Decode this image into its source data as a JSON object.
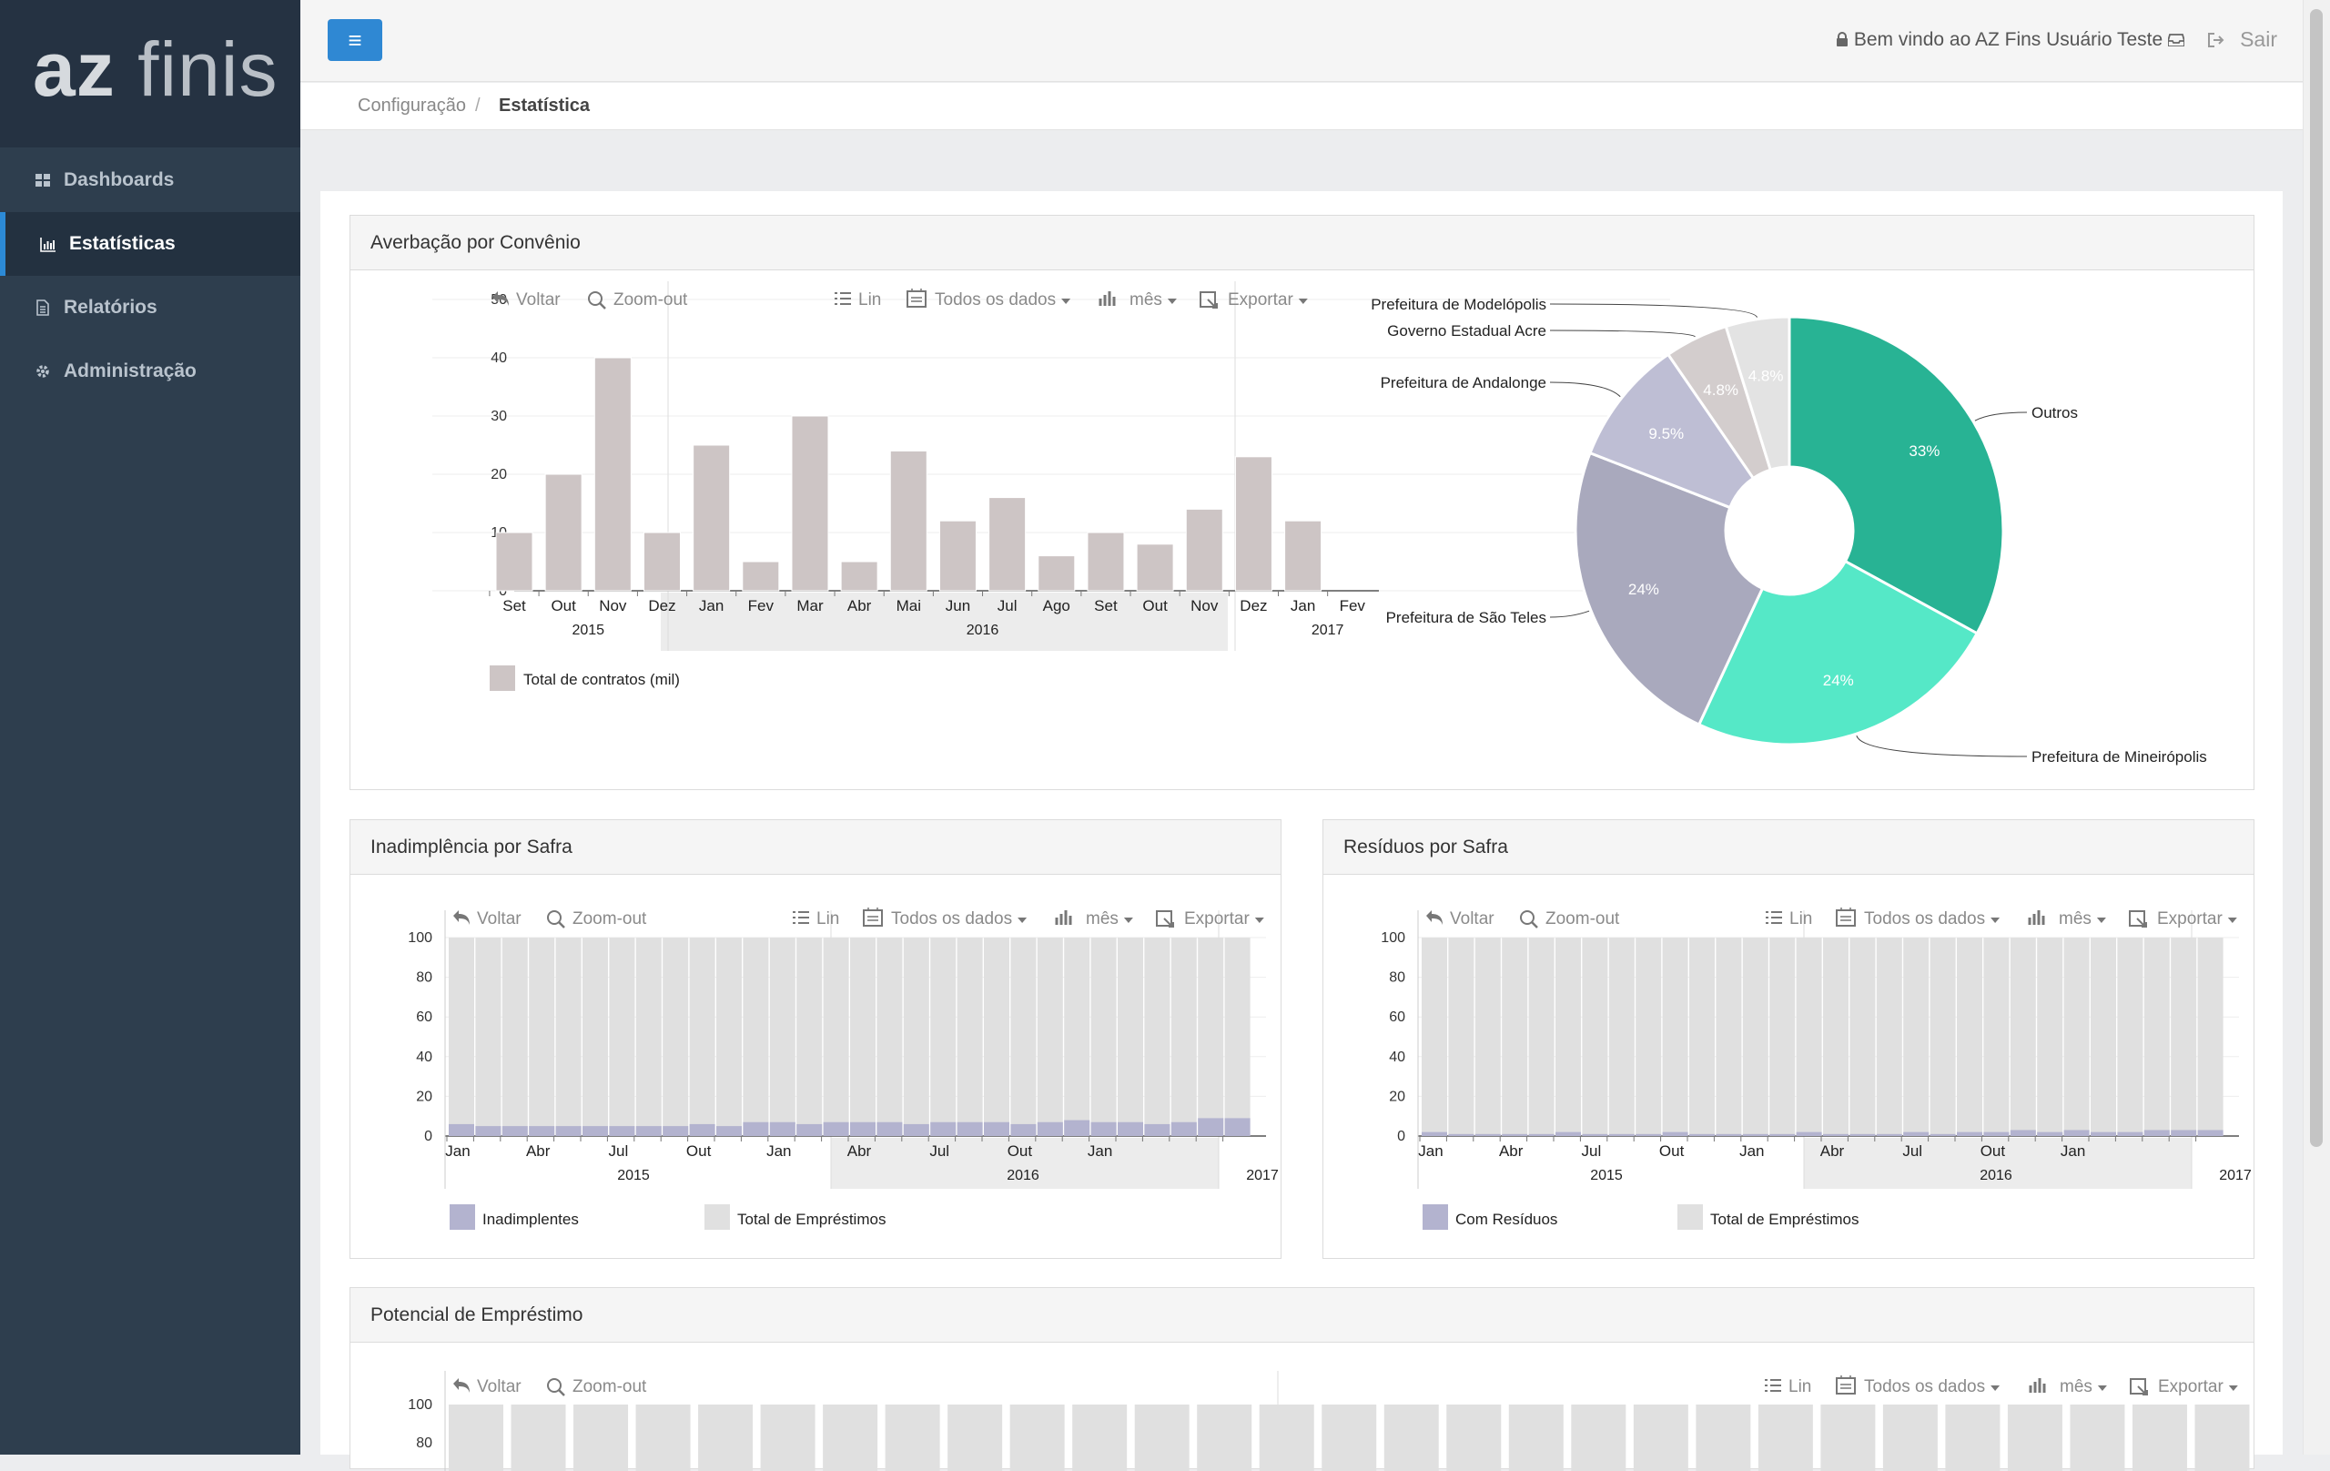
{
  "app": {
    "logo_bold": "az",
    "logo_light": "finis"
  },
  "sidebar": {
    "items": [
      {
        "label": "Dashboards",
        "icon": "th-large-icon"
      },
      {
        "label": "Estatísticas",
        "icon": "bar-chart-icon"
      },
      {
        "label": "Relatórios",
        "icon": "file-icon"
      },
      {
        "label": "Administração",
        "icon": "gear-icon"
      }
    ]
  },
  "topbar": {
    "menu_icon": "≡",
    "welcome": "Bem vindo ao AZ Fins Usuário Teste",
    "logout": "Sair"
  },
  "breadcrumb": {
    "parent": "Configuração",
    "separator": "/",
    "current": "Estatística"
  },
  "toolbar": {
    "back": "Voltar",
    "zoom_out": "Zoom-out",
    "lin": "Lin",
    "all_data": "Todos os dados",
    "period": "mês",
    "export": "Exportar"
  },
  "colors": {
    "accent": "#2f88d3",
    "sidebar": "#2e3e4e",
    "bar": "#cdc5c5",
    "bar_light": "#e0e0e0",
    "bar_purple": "#b3b3cf"
  },
  "panels": {
    "convenio": {
      "title": "Averbação por Convênio"
    },
    "inadimplencia": {
      "title": "Inadimplência por Safra"
    },
    "residuos": {
      "title": "Resíduos por Safra"
    },
    "potencial": {
      "title": "Potencial de Empréstimo"
    }
  },
  "chart_data": [
    {
      "type": "bar",
      "categories": [
        "Set",
        "Out",
        "Nov",
        "Dez",
        "Jan",
        "Fev",
        "Mar",
        "Abr",
        "Mai",
        "Jun",
        "Jul",
        "Ago",
        "Set",
        "Out",
        "Nov",
        "Dez",
        "Jan",
        "Fev"
      ],
      "years": [
        {
          "label": "2015",
          "from": 0,
          "to": 3
        },
        {
          "label": "2016",
          "from": 4,
          "to": 15
        },
        {
          "label": "2017",
          "from": 16,
          "to": 17
        }
      ],
      "series": [
        {
          "name": "Total de contratos (mil)",
          "values": [
            10,
            20,
            40,
            10,
            25,
            5,
            30,
            5,
            24,
            12,
            16,
            6,
            10,
            8,
            14,
            23,
            12,
            null
          ]
        }
      ],
      "yticks": [
        "0",
        "10",
        "20",
        "30",
        "40",
        "50"
      ],
      "ylim": [
        0,
        50
      ]
    },
    {
      "type": "pie",
      "labels": [
        "Outros",
        "Prefeitura de Mineirópolis",
        "Prefeitura de São Teles",
        "Prefeitura de Andalonge",
        "Governo Estadual Acre",
        "Prefeitura de Modelópolis"
      ],
      "values": [
        33,
        24,
        24,
        9.5,
        4.8,
        4.8
      ],
      "value_labels": [
        "33%",
        "24%",
        "24%",
        "9.5%",
        "4.8%",
        "4.8%"
      ],
      "colors": [
        "#28b394",
        "#55e8c7",
        "#a9a9bd",
        "#bebed4",
        "#d3cdcd",
        "#e3e3e3"
      ]
    },
    {
      "type": "bar",
      "stacked": true,
      "x_ticks": [
        "Jan",
        "Abr",
        "Jul",
        "Out",
        "Jan",
        "Abr",
        "Jul",
        "Out",
        "Jan"
      ],
      "years": [
        "2015",
        "2016",
        "2017"
      ],
      "series": [
        {
          "name": "Inadimplentes",
          "values": [
            6,
            5,
            5,
            5,
            5,
            5,
            5,
            5,
            5,
            6,
            5,
            7,
            7,
            6,
            7,
            7,
            7,
            6,
            7,
            7,
            7,
            6,
            7,
            8,
            7,
            7,
            6,
            7,
            9,
            9
          ]
        },
        {
          "name": "Total de Empréstimos",
          "values": [
            100,
            100,
            100,
            100,
            100,
            100,
            100,
            100,
            100,
            100,
            100,
            100,
            100,
            100,
            100,
            100,
            100,
            100,
            100,
            100,
            100,
            100,
            100,
            100,
            100,
            100,
            100,
            100,
            100,
            100
          ]
        }
      ],
      "yticks": [
        "0",
        "20",
        "40",
        "60",
        "80",
        "100"
      ],
      "ylim": [
        0,
        100
      ]
    },
    {
      "type": "bar",
      "stacked": true,
      "x_ticks": [
        "Jan",
        "Abr",
        "Jul",
        "Out",
        "Jan",
        "Abr",
        "Jul",
        "Out",
        "Jan"
      ],
      "years": [
        "2015",
        "2016",
        "2017"
      ],
      "series": [
        {
          "name": "Com Resíduos",
          "values": [
            2,
            1,
            1,
            1,
            1,
            2,
            1,
            1,
            1,
            2,
            1,
            1,
            1,
            1,
            2,
            1,
            1,
            1,
            2,
            1,
            2,
            2,
            3,
            2,
            3,
            2,
            2,
            3,
            3,
            3
          ]
        },
        {
          "name": "Total de Empréstimos",
          "values": [
            100,
            100,
            100,
            100,
            100,
            100,
            100,
            100,
            100,
            100,
            100,
            100,
            100,
            100,
            100,
            100,
            100,
            100,
            100,
            100,
            100,
            100,
            100,
            100,
            100,
            100,
            100,
            100,
            100,
            100
          ]
        }
      ],
      "yticks": [
        "0",
        "20",
        "40",
        "60",
        "80",
        "100"
      ],
      "ylim": [
        0,
        100
      ]
    },
    {
      "type": "bar",
      "yticks": [
        "80",
        "100"
      ],
      "ylim": [
        0,
        100
      ],
      "series": [
        {
          "values": [
            100,
            100,
            100,
            100,
            100,
            100,
            100,
            100,
            100,
            100,
            100,
            100,
            100,
            100,
            100,
            100,
            100,
            100,
            100,
            100,
            100,
            100,
            100,
            100,
            100,
            100,
            100,
            100,
            100,
            100
          ]
        }
      ]
    }
  ]
}
